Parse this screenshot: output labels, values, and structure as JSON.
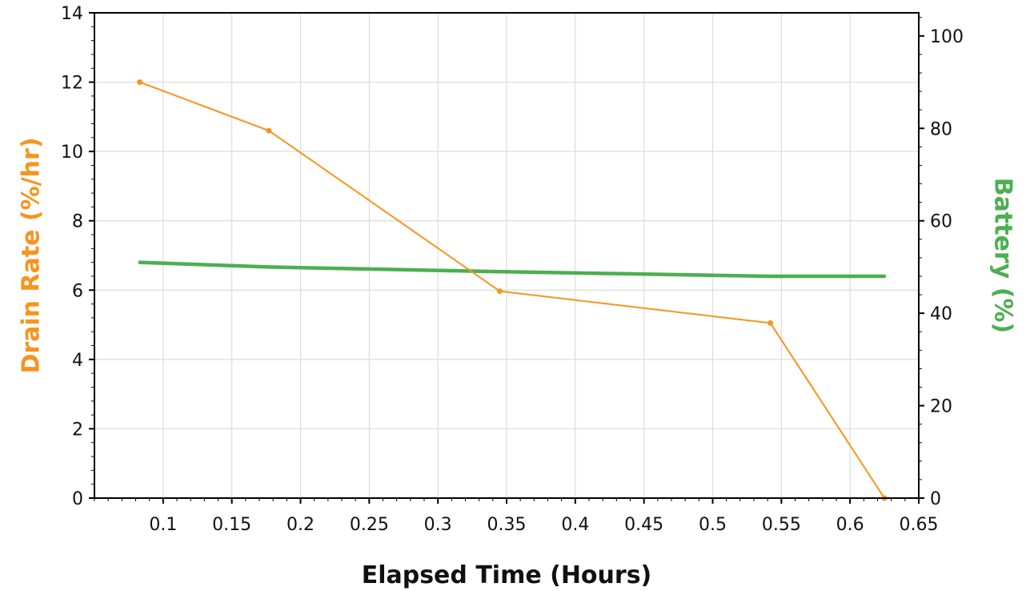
{
  "chart_data": {
    "type": "line",
    "title": "",
    "xlabel": "Elapsed Time (Hours)",
    "ylabel_left": "Drain Rate (%/hr)",
    "ylabel_right": "Battery (%)",
    "xlim": [
      0.05,
      0.65
    ],
    "ylim_left": [
      0,
      14
    ],
    "ylim_right": [
      0,
      105
    ],
    "x_ticks": [
      0.1,
      0.15,
      0.2,
      0.25,
      0.3,
      0.35,
      0.4,
      0.45,
      0.5,
      0.55,
      0.6,
      0.65
    ],
    "x_tick_labels": [
      "0.1",
      "0.15",
      "0.2",
      "0.25",
      "0.3",
      "0.35",
      "0.4",
      "0.45",
      "0.5",
      "0.55",
      "0.6",
      "0.65"
    ],
    "y_left_ticks": [
      0,
      2,
      4,
      6,
      8,
      10,
      12,
      14
    ],
    "y_left_tick_labels": [
      "0",
      "2",
      "4",
      "6",
      "8",
      "10",
      "12",
      "14"
    ],
    "y_right_ticks": [
      0,
      20,
      40,
      60,
      80,
      100
    ],
    "y_right_tick_labels": [
      "0",
      "20",
      "40",
      "60",
      "80",
      "100"
    ],
    "grid": true,
    "series": [
      {
        "axis": "left",
        "color": "#f7941d",
        "markers": true,
        "x": [
          0.083,
          0.177,
          0.345,
          0.542,
          0.625
        ],
        "y": [
          12.0,
          10.6,
          5.97,
          5.05,
          0.0
        ]
      },
      {
        "axis": "right",
        "color": "#4caf50",
        "markers": false,
        "x": [
          0.083,
          0.177,
          0.345,
          0.542,
          0.625
        ],
        "y": [
          51.0,
          50.0,
          49.0,
          48.0,
          48.0
        ]
      }
    ]
  }
}
